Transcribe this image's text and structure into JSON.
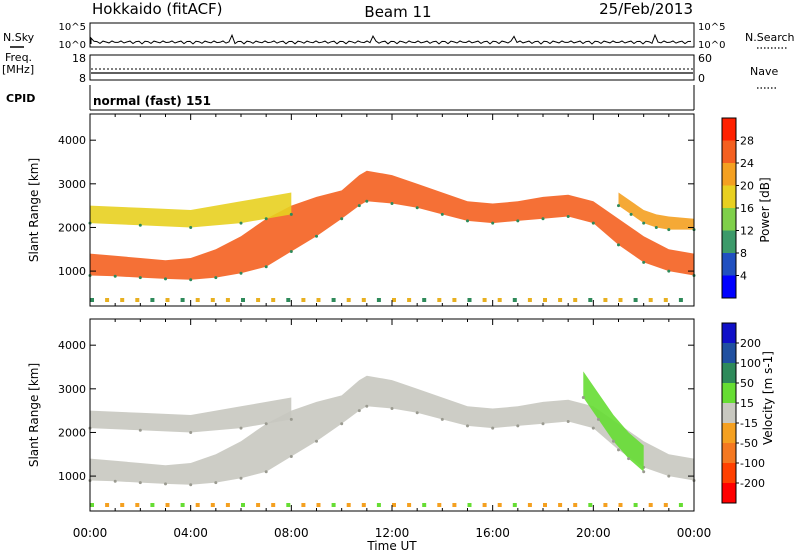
{
  "header": {
    "station": "Hokkaido (fitACF)",
    "beam": "Beam 11",
    "date": "25/Feb/2013"
  },
  "top_panels": {
    "nsky_label": "N.Sky",
    "nsky_ticks": [
      "10^5",
      "10^0"
    ],
    "nsky_right_ticks": [
      "10^5",
      "10^0"
    ],
    "nsearch_label": "N.Search",
    "freq_label": "Freq.",
    "freq_unit": "[MHz]",
    "freq_ticks": [
      "18",
      "8"
    ],
    "nave_label": "Nave",
    "nave_ticks": [
      "60",
      "0"
    ],
    "cpid_label": "CPID",
    "cpid_value": "normal (fast) 151"
  },
  "colors": {
    "power_scale": [
      "#0000ff",
      "#2050c0",
      "#3c9a6a",
      "#7fd04a",
      "#e8d020",
      "#f4a020",
      "#f46020",
      "#ff2000"
    ],
    "velocity_scale": [
      "#1010c8",
      "#2050a0",
      "#2e8a5a",
      "#66dd33",
      "#c8c8c0",
      "#f4a020",
      "#f47820",
      "#ff4000",
      "#ff0000"
    ],
    "ground_scatter": "#c8c8c0"
  },
  "chart_data": [
    {
      "type": "heatmap",
      "name": "power-panel",
      "xlabel": "Time UT",
      "ylabel": "Slant Range [km]",
      "xlim": [
        0,
        24
      ],
      "ylim": [
        200,
        4600
      ],
      "x_ticks": [
        "00:00",
        "04:00",
        "08:00",
        "12:00",
        "16:00",
        "20:00",
        "00:00"
      ],
      "y_ticks": [
        "1000",
        "2000",
        "3000",
        "4000"
      ],
      "colorbar_label": "Power [dB]",
      "colorbar_ticks": [
        "4",
        "8",
        "12",
        "16",
        "20",
        "24",
        "28"
      ],
      "bands": [
        {
          "x": [
            0,
            1,
            2,
            3,
            4,
            5,
            6,
            7,
            8,
            9,
            10,
            10.7,
            11,
            12,
            13,
            14,
            15,
            16,
            17,
            18,
            19,
            20,
            21,
            22,
            23,
            24
          ],
          "lower": [
            900,
            880,
            850,
            820,
            800,
            850,
            950,
            1100,
            1450,
            1800,
            2200,
            2500,
            2600,
            2550,
            2450,
            2300,
            2150,
            2100,
            2150,
            2200,
            2250,
            2100,
            1600,
            1200,
            1000,
            900
          ],
          "upper": [
            1400,
            1350,
            1300,
            1250,
            1300,
            1500,
            1800,
            2200,
            2500,
            2700,
            2850,
            3200,
            3300,
            3200,
            3000,
            2800,
            2600,
            2550,
            2600,
            2700,
            2750,
            2600,
            2200,
            1800,
            1500,
            1400
          ],
          "power_db": 26
        },
        {
          "x": [
            0,
            2,
            4,
            6,
            7,
            8
          ],
          "lower": [
            2100,
            2050,
            2000,
            2100,
            2200,
            2300
          ],
          "upper": [
            2500,
            2450,
            2400,
            2600,
            2700,
            2800
          ],
          "power_db": 20
        },
        {
          "x": [
            21,
            21.5,
            22,
            22.5,
            23,
            24
          ],
          "lower": [
            2500,
            2300,
            2100,
            2000,
            1950,
            1950
          ],
          "upper": [
            2800,
            2600,
            2400,
            2300,
            2250,
            2200
          ],
          "power_db": 24
        }
      ]
    },
    {
      "type": "heatmap",
      "name": "velocity-panel",
      "xlabel": "Time UT",
      "ylabel": "Slant Range [km]",
      "xlim": [
        0,
        24
      ],
      "ylim": [
        200,
        4600
      ],
      "x_ticks": [
        "00:00",
        "04:00",
        "08:00",
        "12:00",
        "16:00",
        "20:00",
        "00:00"
      ],
      "y_ticks": [
        "1000",
        "2000",
        "3000",
        "4000"
      ],
      "colorbar_label": "Velocity [m s-1]",
      "colorbar_ticks": [
        "200",
        "100",
        "50",
        "15",
        "-15",
        "-50",
        "-100",
        "-200"
      ],
      "bands": [
        {
          "x": [
            0,
            1,
            2,
            3,
            4,
            5,
            6,
            7,
            8,
            9,
            10,
            10.7,
            11,
            12,
            13,
            14,
            15,
            16,
            17,
            18,
            19,
            20,
            21,
            22,
            23,
            24
          ],
          "lower": [
            900,
            880,
            850,
            820,
            800,
            850,
            950,
            1100,
            1450,
            1800,
            2200,
            2500,
            2600,
            2550,
            2450,
            2300,
            2150,
            2100,
            2150,
            2200,
            2250,
            2100,
            1600,
            1200,
            1000,
            900
          ],
          "upper": [
            1400,
            1350,
            1300,
            1250,
            1300,
            1500,
            1800,
            2200,
            2500,
            2700,
            2850,
            3200,
            3300,
            3200,
            3000,
            2800,
            2600,
            2550,
            2600,
            2700,
            2750,
            2600,
            2200,
            1800,
            1500,
            1400
          ],
          "velocity": 0
        },
        {
          "x": [
            0,
            2,
            4,
            6,
            7,
            8
          ],
          "lower": [
            2100,
            2050,
            2000,
            2100,
            2200,
            2300
          ],
          "upper": [
            2500,
            2450,
            2400,
            2600,
            2700,
            2800
          ],
          "velocity": 0
        },
        {
          "x": [
            19.6,
            20.2,
            20.8,
            21.4,
            22
          ],
          "lower": [
            2800,
            2300,
            1800,
            1400,
            1100
          ],
          "upper": [
            3400,
            2900,
            2400,
            2000,
            1700
          ],
          "velocity": 40
        }
      ]
    }
  ]
}
